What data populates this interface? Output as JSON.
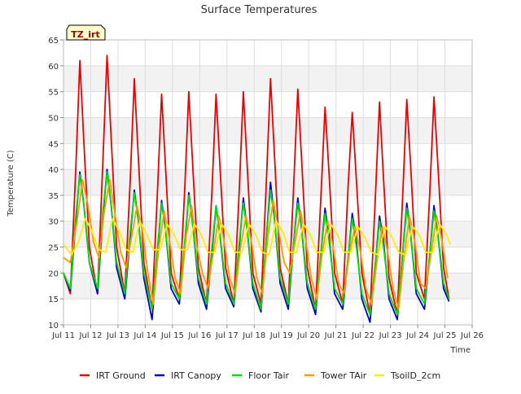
{
  "chart_data": {
    "type": "line",
    "title": "Surface Temperatures",
    "xlabel": "Time",
    "ylabel": "Temperature (C)",
    "site_badge": "TZ_irt",
    "ylim": [
      10,
      65
    ],
    "yticks": [
      10,
      15,
      20,
      25,
      30,
      35,
      40,
      45,
      50,
      55,
      60,
      65
    ],
    "xlim": [
      11,
      26
    ],
    "xticks": [
      11,
      12,
      13,
      14,
      15,
      16,
      17,
      18,
      19,
      20,
      21,
      22,
      23,
      24,
      25,
      26
    ],
    "xtick_labels": [
      "Jul 11",
      "Jul 12",
      "Jul 13",
      "Jul 14",
      "Jul 15",
      "Jul 16",
      "Jul 17",
      "Jul 18",
      "Jul 19",
      "Jul 20",
      "Jul 21",
      "Jul 22",
      "Jul 23",
      "Jul 24",
      "Jul 25",
      "Jul 26"
    ],
    "grid": true,
    "legend_position": "bottom",
    "series": [
      {
        "name": "IRT Ground",
        "color": "#ee0000",
        "x": [
          11.0,
          11.25,
          11.45,
          11.6,
          11.75,
          11.95,
          12.25,
          12.45,
          12.6,
          12.75,
          12.95,
          13.25,
          13.45,
          13.6,
          13.75,
          13.95,
          14.25,
          14.45,
          14.6,
          14.75,
          14.95,
          15.25,
          15.45,
          15.6,
          15.75,
          15.95,
          16.25,
          16.45,
          16.6,
          16.75,
          16.95,
          17.25,
          17.45,
          17.6,
          17.75,
          17.95,
          18.25,
          18.45,
          18.6,
          18.75,
          18.95,
          19.25,
          19.45,
          19.6,
          19.75,
          19.95,
          20.25,
          20.45,
          20.6,
          20.75,
          20.95,
          21.25,
          21.45,
          21.6,
          21.75,
          21.95,
          22.25,
          22.45,
          22.6,
          22.75,
          22.95,
          23.25,
          23.45,
          23.6,
          23.75,
          23.95,
          24.25,
          24.45,
          24.6,
          24.75,
          24.95,
          25.15
        ],
        "y": [
          20,
          16,
          40,
          61,
          45,
          25,
          16,
          42,
          62,
          46,
          25,
          16,
          38,
          57.5,
          42,
          22,
          13,
          36,
          54.5,
          40,
          20,
          15,
          36,
          55,
          40,
          21,
          14,
          36,
          54.5,
          40,
          21,
          14,
          36,
          55,
          40,
          20,
          14,
          38,
          57.5,
          42,
          21,
          14,
          37,
          55.5,
          41,
          21,
          13,
          35,
          52,
          39,
          20,
          14,
          37,
          51,
          38,
          20,
          12,
          35,
          53,
          38,
          19,
          12,
          35,
          53.5,
          40,
          20,
          15,
          36,
          54,
          40,
          21,
          15
        ]
      },
      {
        "name": "IRT Canopy",
        "color": "#0000cc",
        "x": [
          11.0,
          11.25,
          11.45,
          11.6,
          11.75,
          11.95,
          12.25,
          12.45,
          12.6,
          12.75,
          12.95,
          13.25,
          13.45,
          13.6,
          13.75,
          13.95,
          14.25,
          14.45,
          14.6,
          14.75,
          14.95,
          15.25,
          15.45,
          15.6,
          15.75,
          15.95,
          16.25,
          16.45,
          16.6,
          16.75,
          16.95,
          17.25,
          17.45,
          17.6,
          17.75,
          17.95,
          18.25,
          18.45,
          18.6,
          18.75,
          18.95,
          19.25,
          19.45,
          19.6,
          19.75,
          19.95,
          20.25,
          20.45,
          20.6,
          20.75,
          20.95,
          21.25,
          21.45,
          21.6,
          21.75,
          21.95,
          22.25,
          22.45,
          22.6,
          22.75,
          22.95,
          23.25,
          23.45,
          23.6,
          23.75,
          23.95,
          24.25,
          24.45,
          24.6,
          24.75,
          24.95,
          25.15
        ],
        "y": [
          20,
          16.5,
          30,
          39.5,
          33,
          22,
          16,
          31,
          40,
          33,
          21,
          15,
          27,
          36,
          30,
          19,
          11,
          24,
          34,
          28,
          17,
          14,
          25,
          35.5,
          29,
          18,
          13,
          24,
          33,
          27,
          17,
          13.5,
          25,
          34.5,
          28,
          17,
          12.5,
          27,
          37.5,
          30,
          18,
          13,
          26,
          34.5,
          28,
          17,
          12,
          24,
          32.5,
          27,
          16,
          13,
          23,
          31.5,
          26,
          15,
          10.5,
          22,
          31,
          26,
          15,
          11,
          24,
          33.5,
          27,
          16,
          13,
          24,
          33,
          27,
          17,
          14.5
        ]
      },
      {
        "name": "Floor Tair",
        "color": "#00dd00",
        "x": [
          11.0,
          11.25,
          11.45,
          11.6,
          11.75,
          11.95,
          12.25,
          12.45,
          12.6,
          12.75,
          12.95,
          13.25,
          13.45,
          13.6,
          13.75,
          13.95,
          14.25,
          14.45,
          14.6,
          14.75,
          14.95,
          15.25,
          15.45,
          15.6,
          15.75,
          15.95,
          16.25,
          16.45,
          16.6,
          16.75,
          16.95,
          17.25,
          17.45,
          17.6,
          17.75,
          17.95,
          18.25,
          18.45,
          18.6,
          18.75,
          18.95,
          19.25,
          19.45,
          19.6,
          19.75,
          19.95,
          20.25,
          20.45,
          20.6,
          20.75,
          20.95,
          21.25,
          21.45,
          21.6,
          21.75,
          21.95,
          22.25,
          22.45,
          22.6,
          22.75,
          22.95,
          23.25,
          23.45,
          23.6,
          23.75,
          23.95,
          24.25,
          24.45,
          24.6,
          24.75,
          24.95,
          25.15
        ],
        "y": [
          20,
          17,
          31,
          39,
          33,
          22,
          17,
          32,
          39.5,
          33,
          22,
          16,
          28,
          35.5,
          30,
          20,
          13,
          25,
          33.5,
          28,
          18,
          15,
          26,
          35,
          29,
          19,
          14,
          25,
          33,
          27,
          18,
          14,
          26,
          33.5,
          28,
          18,
          13,
          27,
          36,
          30,
          19,
          14,
          26,
          33.5,
          28,
          18,
          13,
          24,
          31.5,
          26,
          17,
          14,
          23,
          30.5,
          25,
          16,
          12,
          22,
          30,
          25,
          16,
          12,
          24,
          32.5,
          27,
          17,
          14,
          24,
          32,
          27,
          18,
          15
        ]
      },
      {
        "name": "Tower TAir",
        "color": "#ff9900",
        "x": [
          11.0,
          11.25,
          11.5,
          11.7,
          11.9,
          12.1,
          12.3,
          12.5,
          12.7,
          12.9,
          13.1,
          13.3,
          13.5,
          13.7,
          13.9,
          14.1,
          14.3,
          14.5,
          14.7,
          14.9,
          15.1,
          15.3,
          15.5,
          15.7,
          15.9,
          16.1,
          16.3,
          16.5,
          16.7,
          16.9,
          17.1,
          17.3,
          17.5,
          17.7,
          17.9,
          18.1,
          18.3,
          18.5,
          18.7,
          18.9,
          19.1,
          19.3,
          19.5,
          19.7,
          19.9,
          20.1,
          20.3,
          20.5,
          20.7,
          20.9,
          21.1,
          21.3,
          21.5,
          21.7,
          21.9,
          22.1,
          22.3,
          22.5,
          22.7,
          22.9,
          23.1,
          23.3,
          23.5,
          23.7,
          23.9,
          24.1,
          24.3,
          24.5,
          24.7,
          24.9,
          25.1
        ],
        "y": [
          23,
          22,
          30,
          38,
          33,
          26,
          23,
          32,
          38,
          31,
          24,
          21,
          27,
          33,
          28,
          20,
          14,
          25,
          32,
          26,
          19,
          16,
          27,
          33,
          25,
          20,
          17,
          24,
          31,
          26,
          19,
          16,
          25,
          31,
          26,
          19,
          16,
          27,
          34,
          28,
          22,
          20,
          26,
          32,
          26,
          19,
          15,
          24,
          30,
          25,
          18,
          16,
          24,
          29,
          24,
          17,
          14,
          22,
          29,
          24,
          17,
          13,
          23,
          31,
          26,
          18,
          17,
          24,
          31,
          26,
          19
        ]
      },
      {
        "name": "TsoilD_2cm",
        "color": "#ffee00",
        "x": [
          11.0,
          11.3,
          11.55,
          11.8,
          12.05,
          12.3,
          12.55,
          12.8,
          13.05,
          13.3,
          13.55,
          13.8,
          14.05,
          14.3,
          14.55,
          14.8,
          15.05,
          15.3,
          15.55,
          15.8,
          16.05,
          16.3,
          16.55,
          16.8,
          17.05,
          17.3,
          17.55,
          17.8,
          18.05,
          18.3,
          18.55,
          18.8,
          19.05,
          19.3,
          19.55,
          19.8,
          20.05,
          20.3,
          20.55,
          20.8,
          21.05,
          21.3,
          21.55,
          21.8,
          22.05,
          22.3,
          22.55,
          22.8,
          23.05,
          23.3,
          23.55,
          23.8,
          24.05,
          24.3,
          24.55,
          24.8,
          25.05,
          25.2
        ],
        "y": [
          25.5,
          23.5,
          26,
          30.5,
          28,
          24.5,
          24,
          30.5,
          28,
          24.5,
          24,
          30,
          27.5,
          24.5,
          24.5,
          29.5,
          27.5,
          24.5,
          24.5,
          29.5,
          27.5,
          24,
          24,
          29.5,
          27.5,
          24,
          24,
          29.5,
          27.5,
          24,
          23.5,
          30,
          28,
          24,
          24,
          29.5,
          27.5,
          24,
          24,
          29.5,
          27.5,
          24,
          24,
          29,
          27,
          24,
          23.5,
          29,
          27,
          24,
          23.5,
          29,
          27.5,
          24,
          24,
          29.5,
          27.5,
          25.5
        ]
      }
    ]
  }
}
